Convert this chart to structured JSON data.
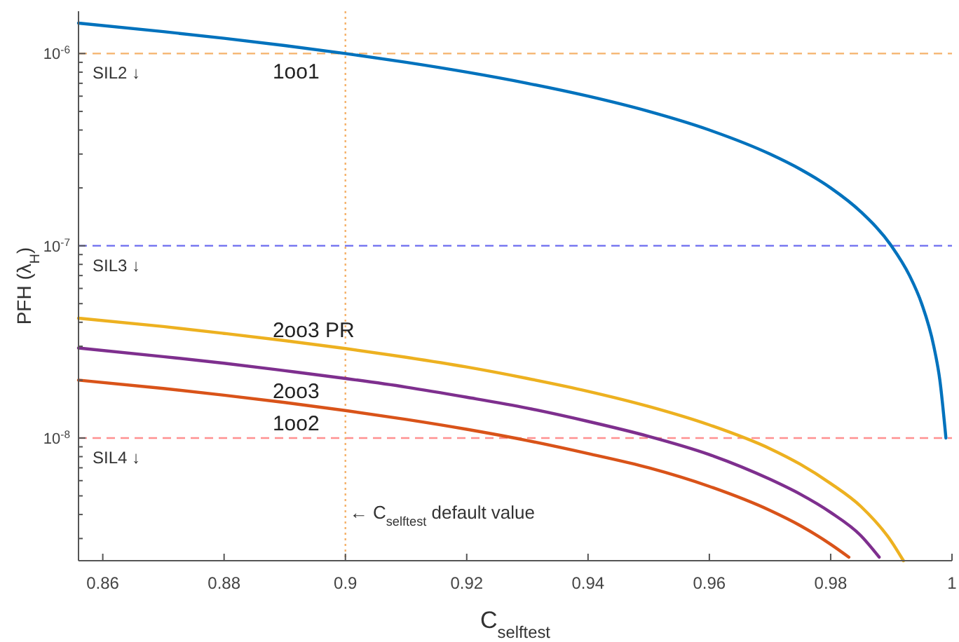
{
  "chart_data": {
    "type": "line",
    "xlabel": "C$_{selftest}$",
    "ylabel": "PFH (λ$_{H}$)",
    "log": "y",
    "xlim": [
      0.856,
      1
    ],
    "xticks": [
      0.86,
      0.88,
      0.9,
      0.92,
      0.94,
      0.96,
      0.98,
      1
    ],
    "ylim": [
      2.3e-09,
      1.66e-06
    ],
    "yticks": [
      {
        "value": 3e-09,
        "label": null
      },
      {
        "value": 4e-09,
        "label": null
      },
      {
        "value": 5e-09,
        "label": null
      },
      {
        "value": 6e-09,
        "label": null
      },
      {
        "value": 7e-09,
        "label": null
      },
      {
        "value": 8e-09,
        "label": null
      },
      {
        "value": 9e-09,
        "label": null
      },
      {
        "value": 1e-08,
        "label": "10$^{-8}$"
      },
      {
        "value": 2e-08,
        "label": null
      },
      {
        "value": 3e-08,
        "label": null
      },
      {
        "value": 4e-08,
        "label": null
      },
      {
        "value": 5e-08,
        "label": null
      },
      {
        "value": 6e-08,
        "label": null
      },
      {
        "value": 7e-08,
        "label": null
      },
      {
        "value": 8e-08,
        "label": null
      },
      {
        "value": 9e-08,
        "label": null
      },
      {
        "value": 1e-07,
        "label": "10$^{-7}$"
      },
      {
        "value": 2e-07,
        "label": null
      },
      {
        "value": 3e-07,
        "label": null
      },
      {
        "value": 4e-07,
        "label": null
      },
      {
        "value": 5e-07,
        "label": null
      },
      {
        "value": 6e-07,
        "label": null
      },
      {
        "value": 7e-07,
        "label": null
      },
      {
        "value": 8e-07,
        "label": null
      },
      {
        "value": 9e-07,
        "label": null
      },
      {
        "value": 1e-06,
        "label": "10$^{-6}$"
      }
    ],
    "grid": false,
    "legend": false,
    "marker": "none",
    "line_style": "solid",
    "series": [
      {
        "name": "1oo1",
        "color": "#0072bd",
        "x": [
          0.856,
          0.87,
          0.88,
          0.89,
          0.9,
          0.91,
          0.92,
          0.93,
          0.94,
          0.95,
          0.96,
          0.97,
          0.975,
          0.98,
          0.985,
          0.99,
          0.993,
          0.995,
          0.997,
          0.998,
          0.999
        ],
        "values": [
          1.44e-06,
          1.3e-06,
          1.2e-06,
          1.1e-06,
          1e-06,
          9e-07,
          8e-07,
          7e-07,
          6e-07,
          5e-07,
          4e-07,
          3e-07,
          2.5e-07,
          2e-07,
          1.5e-07,
          1e-07,
          7e-08,
          5e-08,
          3e-08,
          2e-08,
          1e-08
        ]
      },
      {
        "name": "2oo3 PR",
        "color": "#edb120",
        "x": [
          0.856,
          0.87,
          0.88,
          0.89,
          0.9,
          0.91,
          0.92,
          0.93,
          0.94,
          0.95,
          0.96,
          0.97,
          0.975,
          0.98,
          0.985,
          0.99,
          0.992
        ],
        "values": [
          4.2e-08,
          3.8e-08,
          3.5e-08,
          3.21e-08,
          2.92e-08,
          2.63e-08,
          2.34e-08,
          2.04e-08,
          1.75e-08,
          1.46e-08,
          1.17e-08,
          8.8e-09,
          7.3e-09,
          5.8e-09,
          4.4e-09,
          2.9e-09,
          2.3e-09
        ]
      },
      {
        "name": "2oo3",
        "color": "#7e2f8e",
        "x": [
          0.856,
          0.87,
          0.88,
          0.89,
          0.9,
          0.91,
          0.92,
          0.93,
          0.94,
          0.95,
          0.96,
          0.97,
          0.975,
          0.98,
          0.985,
          0.988
        ],
        "values": [
          2.94e-08,
          2.65e-08,
          2.45e-08,
          2.24e-08,
          2.04e-08,
          1.84e-08,
          1.63e-08,
          1.43e-08,
          1.22e-08,
          1.02e-08,
          8.2e-09,
          6.1e-09,
          5.1e-09,
          4.1e-09,
          3.1e-09,
          2.4e-09
        ]
      },
      {
        "name": "1oo2",
        "color": "#d95319",
        "x": [
          0.856,
          0.87,
          0.88,
          0.89,
          0.9,
          0.91,
          0.92,
          0.93,
          0.94,
          0.95,
          0.96,
          0.97,
          0.975,
          0.98,
          0.983
        ],
        "values": [
          2e-08,
          1.81e-08,
          1.67e-08,
          1.53e-08,
          1.39e-08,
          1.25e-08,
          1.11e-08,
          9.7e-09,
          8.3e-09,
          7e-09,
          5.6e-09,
          4.2e-09,
          3.5e-09,
          2.8e-09,
          2.4e-09
        ]
      }
    ],
    "ref_lines": [
      {
        "axis": "y",
        "value": 1e-06,
        "label": "SIL2 ↓",
        "color": "#f5b26b",
        "line_style": "dashed"
      },
      {
        "axis": "y",
        "value": 1e-07,
        "label": "SIL3 ↓",
        "color": "#6b6bf0",
        "line_style": "dashed"
      },
      {
        "axis": "y",
        "value": 1e-08,
        "label": "SIL4 ↓",
        "color": "#ff9090",
        "line_style": "dashed"
      },
      {
        "axis": "x",
        "value": 0.9,
        "label": "← C$_{selftest}$ default value",
        "color": "#f5b26b",
        "line_style": "dotted"
      }
    ]
  }
}
